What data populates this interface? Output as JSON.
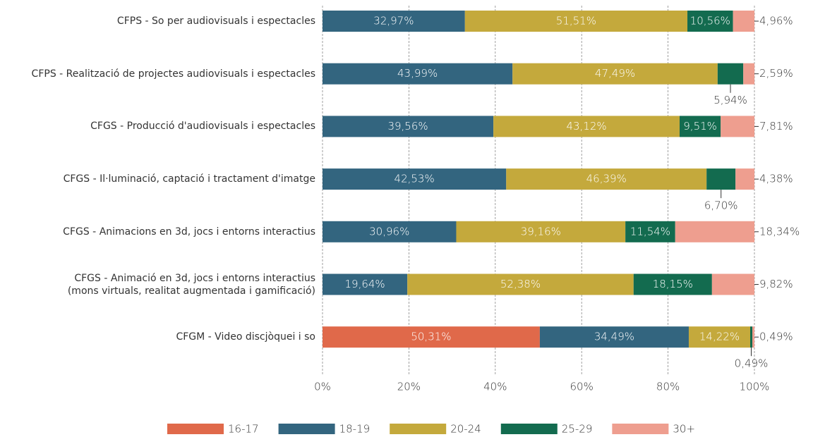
{
  "chart_data": {
    "type": "stacked-bar-horizontal",
    "categories": [
      "CFPS - So per audiovisuals i espectacles",
      "CFPS - Realització de projectes audiovisuals i espectacles",
      "CFGS - Producció d'audiovisuals i espectacles",
      "CFGS - Il·luminació, captació i tractament d'imatge",
      "CFGS - Animacions en 3d, jocs i entorns interactius",
      "CFGS - Animació en 3d, jocs i entorns interactius\n(mons virtuals, realitat augmentada i gamificació)",
      "CFGM - Video discjòquei i so"
    ],
    "series": [
      {
        "name": "16-17",
        "color": "#e0694a",
        "values": [
          null,
          null,
          null,
          null,
          null,
          null,
          50.31
        ],
        "value_labels": [
          null,
          null,
          null,
          null,
          null,
          null,
          "50,31%"
        ]
      },
      {
        "name": "18-19",
        "color": "#33657f",
        "values": [
          32.97,
          43.99,
          39.56,
          42.53,
          30.96,
          19.64,
          34.49
        ],
        "value_labels": [
          "32,97%",
          "43,99%",
          "39,56%",
          "42,53%",
          "30,96%",
          "19,64%",
          "34,49%"
        ]
      },
      {
        "name": "20-24",
        "color": "#c4a93c",
        "values": [
          51.51,
          47.49,
          43.12,
          46.39,
          39.16,
          52.38,
          14.22
        ],
        "value_labels": [
          "51,51%",
          "47,49%",
          "43,12%",
          "46,39%",
          "39,16%",
          "52,38%",
          "14,22%"
        ]
      },
      {
        "name": "25-29",
        "color": "#136b4f",
        "values": [
          10.56,
          5.94,
          9.51,
          6.7,
          11.54,
          18.15,
          0.49
        ],
        "value_labels": [
          "10,56%",
          "5,94%",
          "9,51%",
          "6,70%",
          "11,54%",
          "18,15%",
          "0,49%"
        ]
      },
      {
        "name": "30+",
        "color": "#ee9e8f",
        "values": [
          4.96,
          2.59,
          7.81,
          4.38,
          18.34,
          9.82,
          0.49
        ],
        "value_labels": [
          "4,96%",
          "2,59%",
          "7,81%",
          "4,38%",
          "18,34%",
          "9,82%",
          "0,49%"
        ]
      }
    ],
    "xlim": [
      0,
      100
    ],
    "xticks": [
      {
        "value": 0,
        "label": "0%"
      },
      {
        "value": 20,
        "label": "20%"
      },
      {
        "value": 40,
        "label": "40%"
      },
      {
        "value": 60,
        "label": "60%"
      },
      {
        "value": 80,
        "label": "80%"
      },
      {
        "value": 100,
        "label": "100%"
      }
    ],
    "grid": true,
    "legend": "bottom"
  }
}
